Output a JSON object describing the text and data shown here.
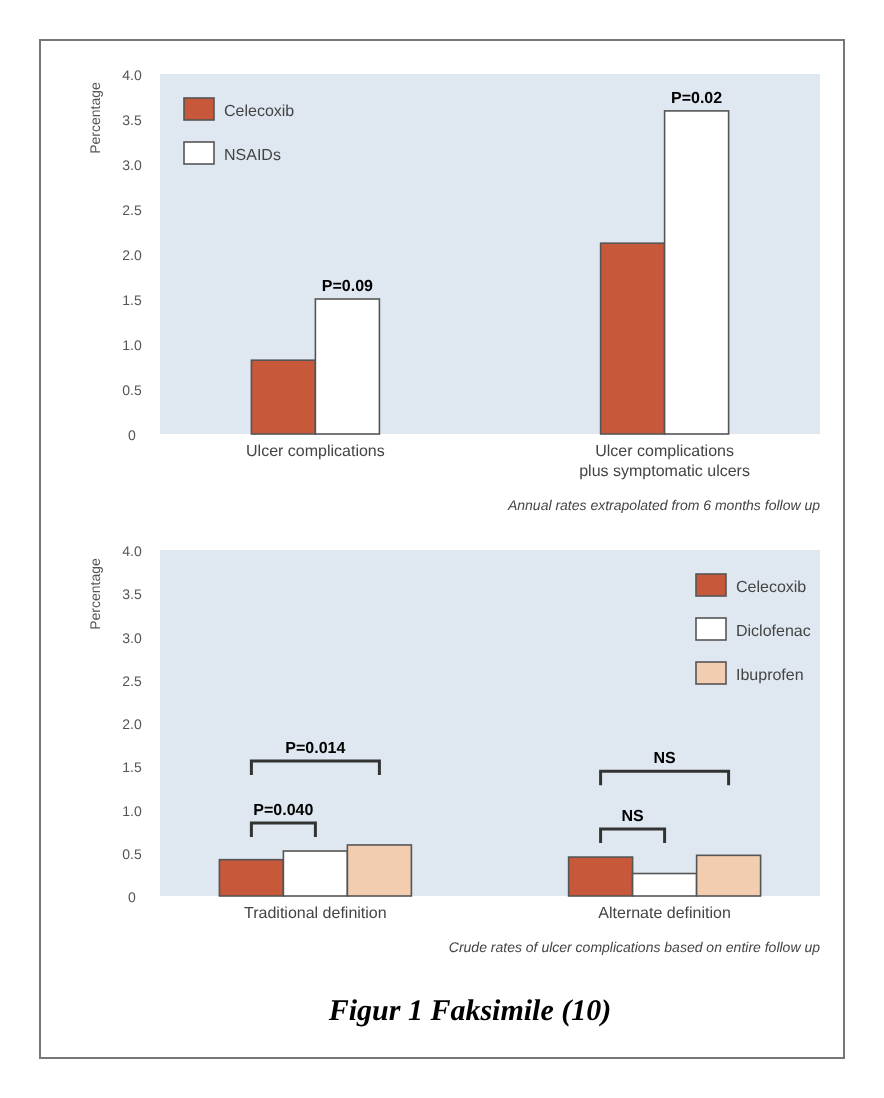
{
  "chart_data": [
    {
      "type": "bar",
      "ylabel": "Percentage",
      "categories": [
        "Ulcer complications",
        "Ulcer complications\nplus symptomatic ulcers"
      ],
      "series": [
        {
          "name": "Celecoxib",
          "color": "#c8583a",
          "values": [
            0.82,
            2.12
          ]
        },
        {
          "name": "NSAIDs",
          "color": "#ffffff",
          "values": [
            1.5,
            3.59
          ]
        }
      ],
      "ylim": [
        0,
        4
      ],
      "yticks": [
        0,
        0.5,
        {
          "value": 1,
          "label": "1.0"
        },
        1.5,
        {
          "value": 2,
          "label": "2.0"
        },
        2.5,
        {
          "value": 3,
          "label": "3.0"
        },
        3.5,
        {
          "value": 4,
          "label": "4.0"
        }
      ],
      "legend": "top left",
      "grid": false,
      "annotations": [
        "P=0.09",
        "P=0.02",
        "Annual rates extrapolated from 6 months follow up"
      ]
    },
    {
      "type": "bar",
      "ylabel": "Percentage",
      "categories": [
        "Traditional definition",
        "Alternate definition"
      ],
      "series": [
        {
          "name": "Celecoxib",
          "color": "#c8583a",
          "values": [
            0.42,
            0.45
          ]
        },
        {
          "name": "Diclofenac",
          "color": "#ffffff",
          "values": [
            0.52,
            0.26
          ]
        },
        {
          "name": "Ibuprofen",
          "color": "#f3cdb0",
          "values": [
            0.59,
            0.47
          ]
        }
      ],
      "ylim": [
        0,
        4
      ],
      "yticks": [
        0,
        0.5,
        {
          "value": 1,
          "label": "1.0"
        },
        1.5,
        {
          "value": 2,
          "label": "2.0"
        },
        2.5,
        {
          "value": 3,
          "label": "3.0"
        },
        3.5,
        {
          "value": 4,
          "label": "4.0"
        }
      ],
      "legend": "top right",
      "grid": false,
      "annotations": [
        "P=0.040",
        "P=0.014",
        "NS",
        "NS",
        "Crude rates of ulcer complications based on entire follow up",
        "Figur 1 Faksimile (10)"
      ]
    }
  ]
}
